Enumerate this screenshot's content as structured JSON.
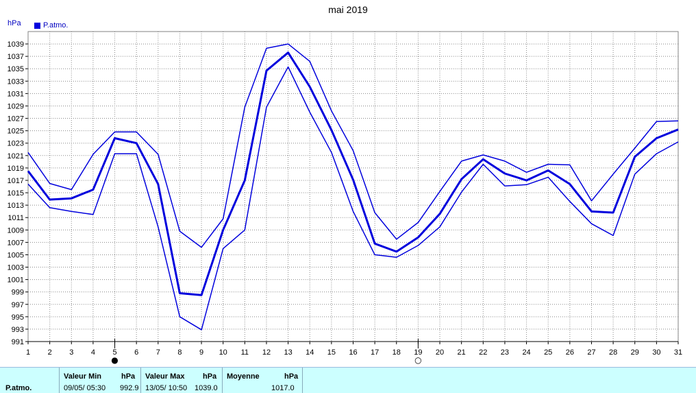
{
  "chart_data": {
    "type": "line",
    "title": "mai 2019",
    "ylabel": "hPa",
    "ylim": [
      991,
      1041
    ],
    "xlim": [
      1,
      31
    ],
    "yticks": [
      991,
      993,
      995,
      997,
      999,
      1001,
      1003,
      1005,
      1007,
      1009,
      1011,
      1013,
      1015,
      1017,
      1019,
      1021,
      1023,
      1025,
      1027,
      1029,
      1031,
      1033,
      1035,
      1037,
      1039
    ],
    "x": [
      1,
      2,
      3,
      4,
      5,
      6,
      7,
      8,
      9,
      10,
      11,
      12,
      13,
      14,
      15,
      16,
      17,
      18,
      19,
      20,
      21,
      22,
      23,
      24,
      25,
      26,
      27,
      28,
      29,
      30,
      31
    ],
    "legend": [
      "P.atmo."
    ],
    "grid": true,
    "colors": {
      "series": "#0000dd",
      "grid": "#888888",
      "panel": "#ccffff"
    },
    "moon_phases": [
      {
        "day": 5,
        "symbol": "new-moon",
        "glyph": "●"
      },
      {
        "day": 19,
        "symbol": "full-moon",
        "glyph": "○"
      }
    ],
    "series": [
      {
        "name": "P.atmo.",
        "role": "max",
        "values": [
          1021.5,
          1016.5,
          1015.5,
          1021.2,
          1024.8,
          1024.8,
          1021.2,
          1008.8,
          1006.2,
          1010.8,
          1028.8,
          1038.3,
          1039.0,
          1036.2,
          1028.2,
          1021.8,
          1011.8,
          1007.5,
          1010.2,
          1015.2,
          1020.1,
          1021.1,
          1020.1,
          1018.3,
          1019.6,
          1019.5,
          1013.7,
          1018.0,
          1022.2,
          1026.5,
          1026.6
        ]
      },
      {
        "name": "P.atmo.",
        "role": "mean",
        "values": [
          1018.5,
          1013.9,
          1014.1,
          1015.5,
          1023.8,
          1023.0,
          1016.4,
          998.8,
          998.5,
          1009.0,
          1017.0,
          1034.7,
          1037.6,
          1032.1,
          1025.1,
          1017.1,
          1006.8,
          1005.5,
          1007.8,
          1011.6,
          1017.2,
          1020.4,
          1018.1,
          1017.0,
          1018.6,
          1016.4,
          1012.0,
          1011.8,
          1020.8,
          1023.8,
          1025.2
        ]
      },
      {
        "name": "P.atmo.",
        "role": "min",
        "values": [
          1016.4,
          1012.6,
          1012.0,
          1011.5,
          1021.3,
          1021.3,
          1009.5,
          995.0,
          992.9,
          1006.0,
          1009.0,
          1028.8,
          1035.3,
          1028.0,
          1021.5,
          1012.0,
          1005.0,
          1004.6,
          1006.5,
          1009.5,
          1015.1,
          1019.6,
          1016.1,
          1016.3,
          1017.5,
          1013.6,
          1010.0,
          1008.1,
          1018.0,
          1021.3,
          1023.2
        ]
      }
    ]
  },
  "summary": {
    "row_label": "P.atmo.",
    "min": {
      "header": "Valeur Min",
      "unit": "hPa",
      "datetime": "09/05/  05:30",
      "value": "992.9"
    },
    "max": {
      "header": "Valeur Max",
      "unit": "hPa",
      "datetime": "13/05/  10:50",
      "value": "1039.0"
    },
    "avg": {
      "header": "Moyenne",
      "unit": "hPa",
      "value": "1017.0"
    }
  }
}
